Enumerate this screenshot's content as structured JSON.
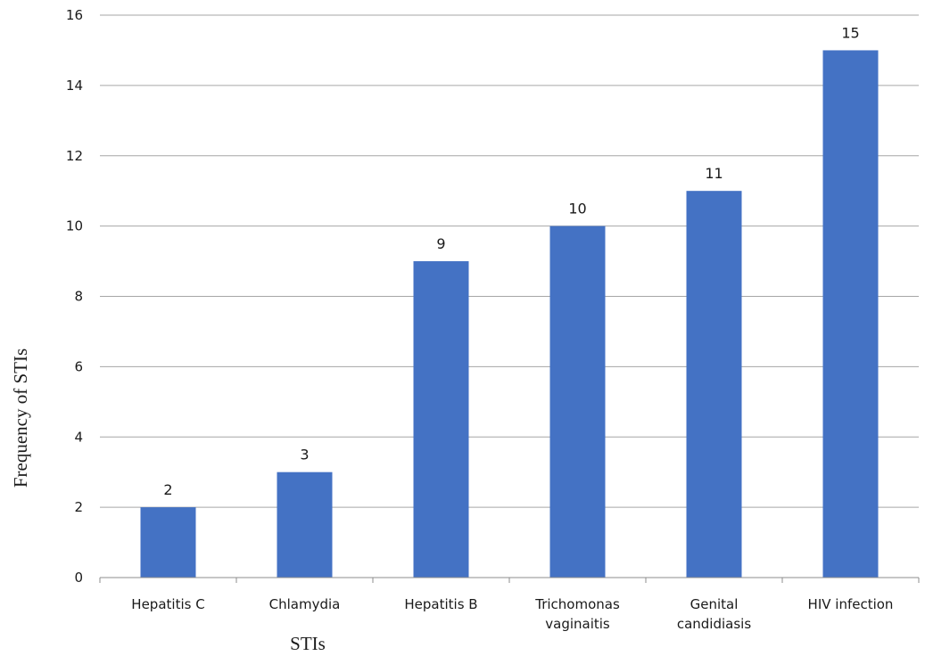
{
  "chart_data": {
    "type": "bar",
    "categories": [
      [
        "Hepatitis C"
      ],
      [
        "Chlamydia"
      ],
      [
        "Hepatitis B"
      ],
      [
        "Trichomonas",
        "vaginaitis"
      ],
      [
        "Genital",
        "candidiasis"
      ],
      [
        "HIV infection"
      ]
    ],
    "values": [
      2,
      3,
      9,
      10,
      11,
      15
    ],
    "xlabel": "STIs",
    "ylabel": "Frequency of STIs",
    "ylim": [
      0,
      16
    ],
    "yticks": [
      0,
      2,
      4,
      6,
      8,
      10,
      12,
      14,
      16
    ],
    "data_labels": true,
    "grid": true,
    "legend": "none",
    "bar_color": "#4472c4"
  }
}
